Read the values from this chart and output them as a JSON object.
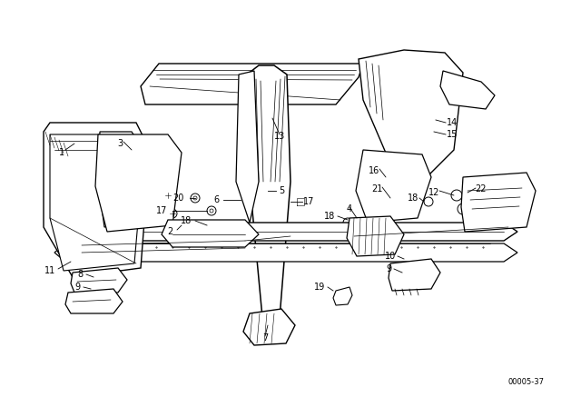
{
  "background_color": "#ffffff",
  "fig_width": 6.4,
  "fig_height": 4.48,
  "dpi": 100,
  "diagram_code": "00005-37",
  "text_color": "#000000",
  "line_color": "#000000",
  "lw_main": 1.0,
  "lw_thin": 0.5,
  "lw_label": 0.6,
  "font_size_label": 7.0,
  "font_size_code": 6.0
}
